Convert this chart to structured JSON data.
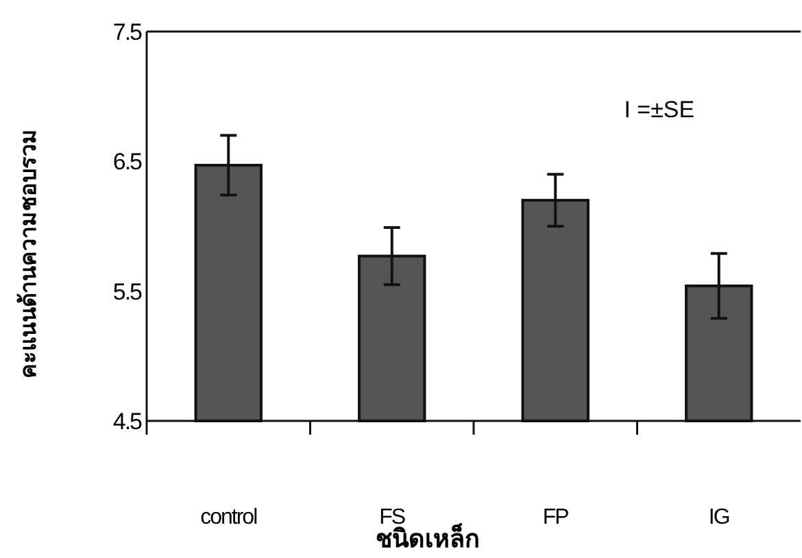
{
  "chart_data": {
    "type": "bar",
    "xlabel": "ชนิดเหล็ก",
    "ylabel": "คะแนนด้านความชอบรวม",
    "categories": [
      "control",
      "FS",
      "FP",
      "IG"
    ],
    "values": [
      6.47,
      5.77,
      6.2,
      5.54
    ],
    "errors": [
      0.23,
      0.22,
      0.2,
      0.25
    ],
    "color": "#555555",
    "ylim": [
      4.5,
      7.5
    ],
    "yticks": [
      4.5,
      5.5,
      6.5,
      7.5
    ],
    "grid": false,
    "annotations": [
      "I =±SE"
    ]
  }
}
